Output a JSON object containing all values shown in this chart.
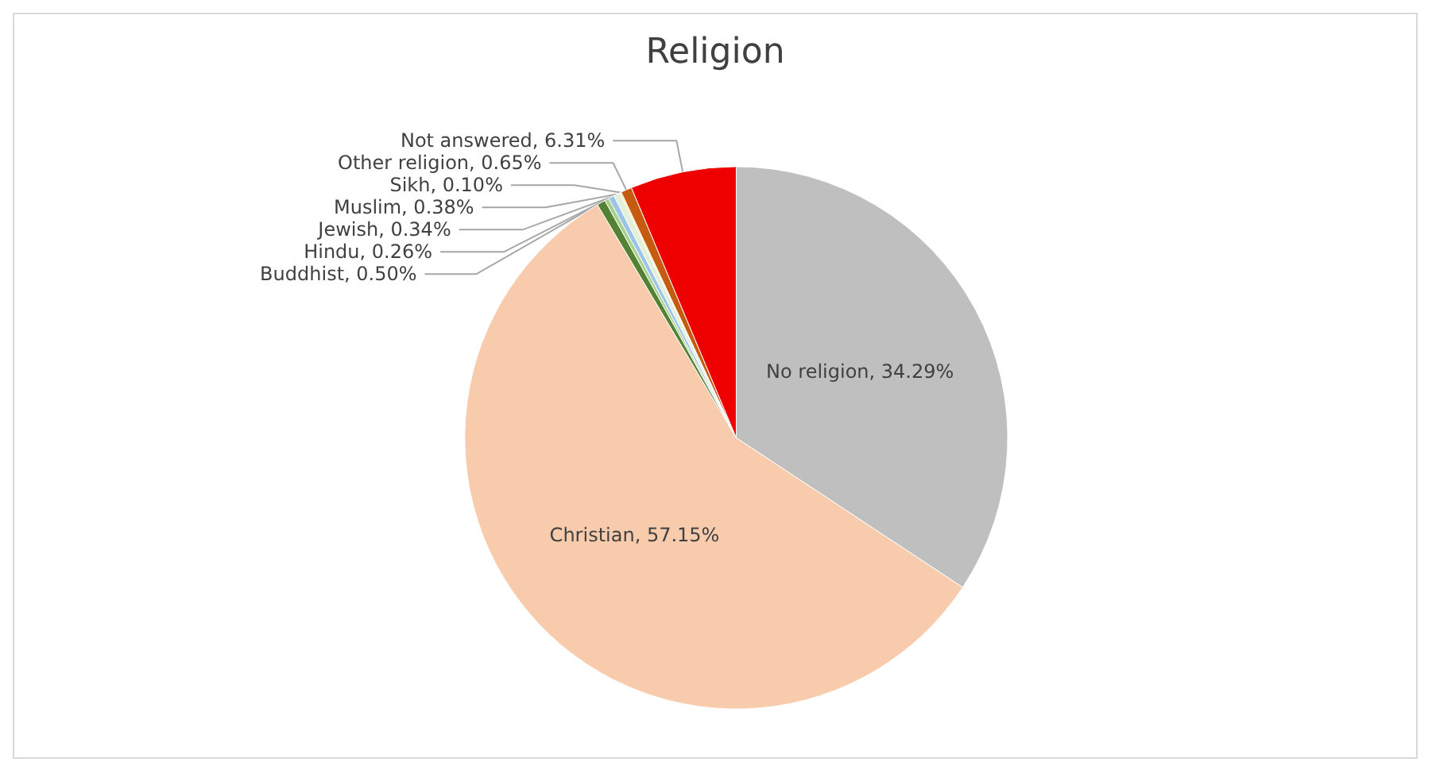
{
  "chart_data": {
    "type": "pie",
    "title": "Religion",
    "categories": [
      "No religion",
      "Christian",
      "Buddhist",
      "Hindu",
      "Jewish",
      "Muslim",
      "Sikh",
      "Other religion",
      "Not answered"
    ],
    "values": [
      34.29,
      57.15,
      0.5,
      0.26,
      0.34,
      0.38,
      0.1,
      0.65,
      6.31
    ],
    "colors": [
      "#bfbfbf",
      "#f8cbad",
      "#548235",
      "#a9d18e",
      "#9dc3e6",
      "#e2f0d9",
      "#ffe699",
      "#c55a11",
      "#ee0000"
    ],
    "value_labels": [
      "34.29%",
      "57.15%",
      "0.50%",
      "0.26%",
      "0.34%",
      "0.38%",
      "0.10%",
      "0.65%",
      "6.31%"
    ],
    "legend": false
  }
}
